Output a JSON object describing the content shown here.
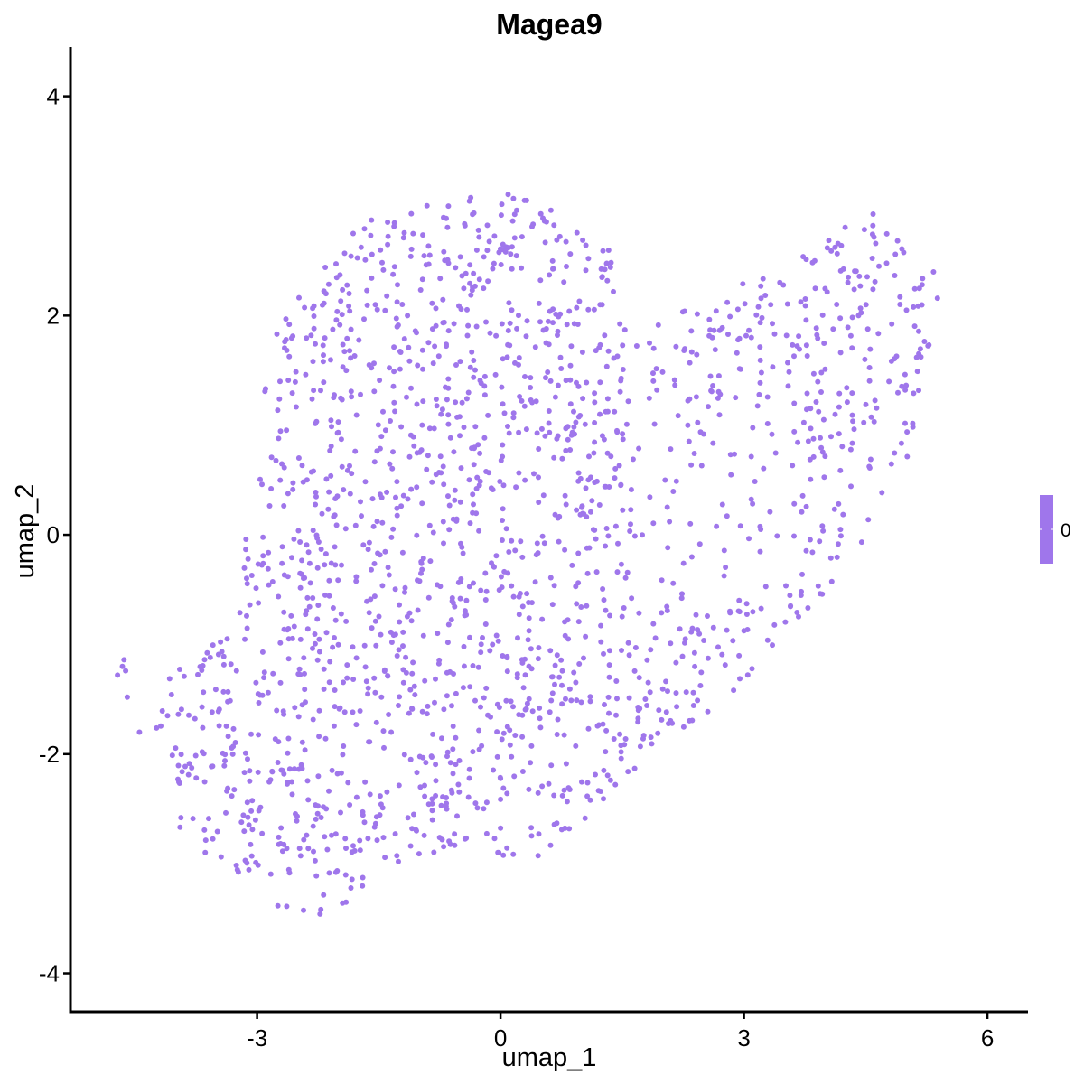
{
  "chart_data": {
    "type": "scatter",
    "title": "Magea9",
    "xlabel": "umap_1",
    "ylabel": "umap_2",
    "xlim": [
      -5.3,
      6.5
    ],
    "ylim": [
      -4.35,
      4.45
    ],
    "x_ticks": [
      -3,
      0,
      3,
      6
    ],
    "y_ticks": [
      -4,
      -2,
      0,
      2,
      4
    ],
    "x_tick_labels": [
      "-3",
      "0",
      "3",
      "6"
    ],
    "y_tick_labels": [
      "-4",
      "-2",
      "0",
      "2",
      "4"
    ],
    "point_color": "#9f76eb",
    "grid": false,
    "legend": {
      "position": "right",
      "type": "colorbar",
      "labels": [
        "0"
      ],
      "color": "#9f76eb"
    },
    "n_points": 1900,
    "seed": 20240611
  }
}
